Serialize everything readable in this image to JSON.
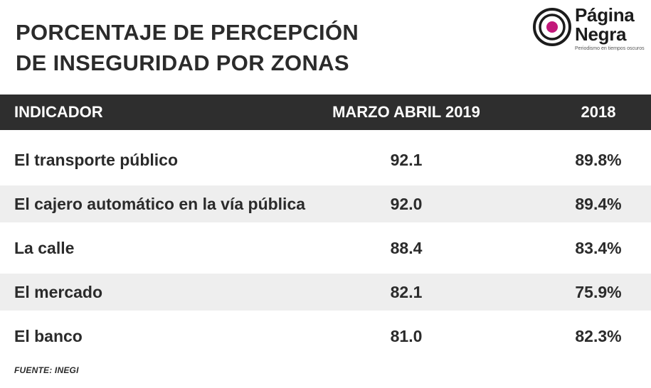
{
  "title_lines": [
    "PORCENTAJE DE PERCEPCIÓN",
    "DE INSEGURIDAD POR ZONAS"
  ],
  "logo": {
    "name_lines": [
      "Página",
      "Negra"
    ],
    "tagline": "Periodismo en tiempos oscuros",
    "accent_color": "#c2187a"
  },
  "chart_data": {
    "type": "table",
    "title": "PORCENTAJE DE PERCEPCIÓN DE INSEGURIDAD POR ZONAS",
    "columns": [
      "INDICADOR",
      "MARZO ABRIL 2019",
      "2018"
    ],
    "rows": [
      [
        "El transporte público",
        "92.1",
        "89.8%"
      ],
      [
        "El cajero automático en la vía pública",
        "92.0",
        "89.4%"
      ],
      [
        "La calle",
        "88.4",
        "83.4%"
      ],
      [
        "El mercado",
        "82.1",
        "75.9%"
      ],
      [
        "El banco",
        "81.0",
        "82.3%"
      ]
    ]
  },
  "colors": {
    "header_bg": "#2e2e2e",
    "header_text": "#ffffff",
    "row_shade": "#eeeeee",
    "text": "#2b2b2b"
  },
  "source": "FUENTE: INEGI"
}
